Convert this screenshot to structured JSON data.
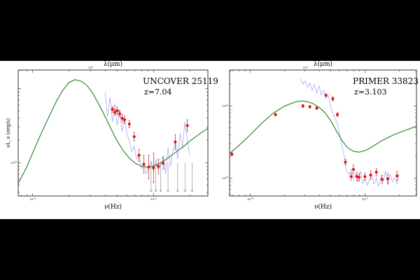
{
  "colors": {
    "model": "#2e8b2e",
    "spectrum": "#8c8cf0",
    "points": "#e01010",
    "errorbar": "#b00000",
    "upper_limit": "#444444",
    "frame": "#000000",
    "background": "#ffffff",
    "letterbox": "#000000"
  },
  "chart_data": [
    {
      "type": "scatter",
      "title": "UNCOVER 25119",
      "subtitle": "z=7.04",
      "xlabel": "ν(Hz)",
      "ylabel": "νL_ν (erg/s)",
      "top_xlabel": "λ(μm)",
      "scale": "log-log",
      "grid": false,
      "x_ticks": [
        {
          "label": "10^14",
          "x": 14.0
        },
        {
          "label": "10^15",
          "x": 15.0
        }
      ],
      "y_ticks": [
        {
          "label": "10^44",
          "y": 44.0
        }
      ],
      "top_ticks": [
        {
          "label": "10^0",
          "x": 14.48
        }
      ],
      "xlim": [
        13.88,
        15.45
      ],
      "ylim": [
        43.55,
        45.25
      ],
      "series": [
        {
          "kind": "model",
          "x": [
            13.88,
            13.95,
            14.0,
            14.05,
            14.1,
            14.15,
            14.2,
            14.25,
            14.3,
            14.35,
            14.4,
            14.45,
            14.5,
            14.55,
            14.6,
            14.65,
            14.7,
            14.75,
            14.8,
            14.85,
            14.9,
            14.95,
            15.0,
            15.05,
            15.1,
            15.15,
            15.2,
            15.25,
            15.3,
            15.35,
            15.4,
            15.45
          ],
          "y": [
            43.72,
            43.94,
            44.13,
            44.32,
            44.5,
            44.67,
            44.84,
            44.98,
            45.08,
            45.12,
            45.1,
            45.04,
            44.93,
            44.78,
            44.62,
            44.45,
            44.29,
            44.16,
            44.06,
            43.99,
            43.95,
            43.94,
            43.95,
            43.99,
            44.04,
            44.1,
            44.16,
            44.22,
            44.29,
            44.35,
            44.41,
            44.46
          ]
        },
        {
          "kind": "spectrum",
          "x": [
            14.6,
            14.62,
            14.64,
            14.66,
            14.68,
            14.7,
            14.72,
            14.74,
            14.76,
            14.78,
            14.8,
            14.82,
            14.84,
            14.86,
            14.88,
            14.9,
            14.92,
            14.94,
            14.96,
            14.98,
            15.0,
            15.02,
            15.04,
            15.06,
            15.08,
            15.1,
            15.12,
            15.14,
            15.16,
            15.18,
            15.2,
            15.22,
            15.24,
            15.26,
            15.28,
            15.3
          ],
          "y": [
            44.95,
            44.62,
            44.88,
            44.55,
            44.8,
            44.5,
            44.72,
            44.42,
            44.6,
            44.38,
            44.3,
            44.15,
            44.22,
            44.05,
            44.1,
            43.92,
            44.0,
            43.85,
            43.93,
            44.02,
            43.88,
            44.05,
            43.9,
            43.98,
            44.1,
            43.85,
            44.2,
            43.95,
            44.15,
            44.3,
            44.05,
            44.4,
            44.2,
            44.55,
            44.3,
            44.1
          ]
        },
        {
          "kind": "photometry",
          "x": [
            14.66,
            14.68,
            14.7,
            14.72,
            14.74,
            14.76,
            14.8,
            14.84,
            14.88,
            14.92,
            14.96,
            15.0,
            15.04,
            15.08,
            15.18,
            15.28
          ],
          "y": [
            44.72,
            44.68,
            44.7,
            44.66,
            44.6,
            44.58,
            44.52,
            44.35,
            44.1,
            43.98,
            43.94,
            43.93,
            43.95,
            43.99,
            44.28,
            44.5
          ],
          "err": [
            0.04,
            0.04,
            0.05,
            0.04,
            0.05,
            0.05,
            0.05,
            0.06,
            0.08,
            0.12,
            0.16,
            0.2,
            0.1,
            0.08,
            0.1,
            0.08
          ]
        },
        {
          "kind": "upper_limit",
          "x": [
            14.98,
            15.02,
            15.06,
            15.12,
            15.2,
            15.26,
            15.32
          ],
          "y": [
            43.62,
            43.62,
            43.62,
            43.62,
            43.62,
            43.62,
            43.62
          ]
        }
      ]
    },
    {
      "type": "scatter",
      "title": "PRIMER 33823",
      "subtitle": "z=3.103",
      "xlabel": "ν(Hz)",
      "ylabel": "",
      "top_xlabel": "λ(μm)",
      "scale": "log-log",
      "grid": false,
      "x_ticks": [
        {
          "label": "10^14",
          "x": 14.0
        },
        {
          "label": "10^15",
          "x": 15.0
        }
      ],
      "y_ticks": [
        {
          "label": "10^44",
          "y": 44.0
        },
        {
          "label": "10^43",
          "y": 43.0
        }
      ],
      "top_ticks": [
        {
          "label": "10^0",
          "x": 14.48
        }
      ],
      "xlim": [
        13.82,
        15.45
      ],
      "ylim": [
        42.75,
        44.5
      ],
      "series": [
        {
          "kind": "model",
          "x": [
            13.82,
            13.9,
            14.0,
            14.1,
            14.2,
            14.3,
            14.4,
            14.45,
            14.5,
            14.55,
            14.6,
            14.65,
            14.7,
            14.75,
            14.8,
            14.85,
            14.9,
            14.95,
            15.0,
            15.05,
            15.1,
            15.15,
            15.2,
            15.25,
            15.3,
            15.35,
            15.4,
            15.45
          ],
          "y": [
            43.34,
            43.45,
            43.6,
            43.76,
            43.9,
            44.0,
            44.06,
            44.07,
            44.06,
            44.03,
            43.98,
            43.91,
            43.8,
            43.66,
            43.52,
            43.42,
            43.37,
            43.36,
            43.38,
            43.42,
            43.47,
            43.52,
            43.56,
            43.6,
            43.63,
            43.66,
            43.69,
            43.72
          ]
        },
        {
          "kind": "spectrum",
          "x": [
            14.44,
            14.46,
            14.48,
            14.5,
            14.52,
            14.54,
            14.56,
            14.58,
            14.6,
            14.62,
            14.64,
            14.66,
            14.68,
            14.7,
            14.72,
            14.74,
            14.76,
            14.78,
            14.8,
            14.82,
            14.84,
            14.86,
            14.88,
            14.9,
            14.92,
            14.94,
            14.96,
            14.98,
            15.0,
            15.02,
            15.04,
            15.06,
            15.08,
            15.1,
            15.12,
            15.14,
            15.16,
            15.18,
            15.2,
            15.22,
            15.24,
            15.26,
            15.28,
            15.3
          ],
          "y": [
            44.38,
            44.3,
            44.35,
            44.26,
            44.32,
            44.22,
            44.3,
            44.18,
            44.28,
            44.15,
            44.22,
            44.1,
            44.15,
            44.0,
            43.9,
            43.82,
            43.75,
            43.6,
            43.45,
            43.3,
            43.1,
            43.05,
            43.12,
            42.98,
            43.05,
            42.95,
            43.1,
            42.92,
            43.0,
            42.9,
            42.98,
            43.05,
            42.92,
            43.0,
            42.88,
            43.02,
            42.95,
            43.1,
            42.9,
            43.05,
            42.95,
            43.0,
            42.92,
            43.05
          ]
        },
        {
          "kind": "photometry",
          "x": [
            13.84,
            14.22,
            14.46,
            14.52,
            14.58,
            14.66,
            14.72,
            14.76,
            14.83,
            14.88,
            14.9,
            14.93,
            14.95,
            15.0,
            15.05,
            15.1,
            15.15,
            15.2,
            15.28
          ],
          "y": [
            43.33,
            43.88,
            44.0,
            43.99,
            43.97,
            44.15,
            44.1,
            43.88,
            43.22,
            43.02,
            43.12,
            43.02,
            43.01,
            43.02,
            43.04,
            43.08,
            42.98,
            42.99,
            43.03
          ],
          "err": [
            0.02,
            0.02,
            0.02,
            0.02,
            0.02,
            0.02,
            0.03,
            0.03,
            0.04,
            0.05,
            0.06,
            0.06,
            0.05,
            0.05,
            0.06,
            0.05,
            0.06,
            0.07,
            0.06
          ]
        }
      ]
    }
  ]
}
